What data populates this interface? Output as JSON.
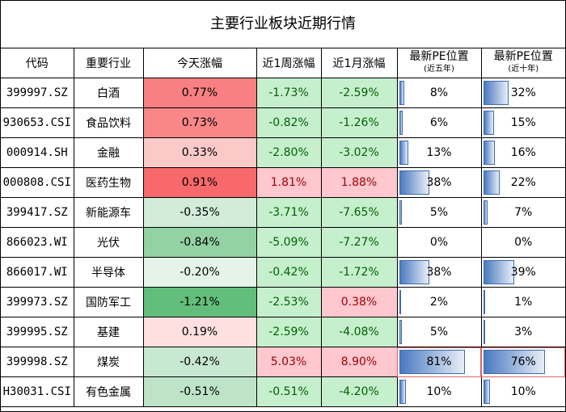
{
  "title": "主要行业板块近期行情",
  "headers": {
    "code": "代码",
    "industry": "重要行业",
    "today": "今天涨幅",
    "week": "近1周涨幅",
    "month": "近1月涨幅",
    "pe5": "最新PE位置",
    "pe5_sub": "(近五年)",
    "pe10": "最新PE位置",
    "pe10_sub": "(近十年)"
  },
  "rows": [
    {
      "code": "399997.SZ",
      "name": "白酒",
      "today": "0.77%",
      "week": "-1.73%",
      "month": "-2.59%",
      "pe5": "8%",
      "pe10": "32%",
      "today_v": 0.77,
      "week_v": -1.73,
      "month_v": -2.59,
      "pe5_v": 8,
      "pe10_v": 32
    },
    {
      "code": "930653.CSI",
      "name": "食品饮料",
      "today": "0.73%",
      "week": "-0.82%",
      "month": "-1.26%",
      "pe5": "6%",
      "pe10": "15%",
      "today_v": 0.73,
      "week_v": -0.82,
      "month_v": -1.26,
      "pe5_v": 6,
      "pe10_v": 15
    },
    {
      "code": "000914.SH",
      "name": "金融",
      "today": "0.33%",
      "week": "-2.80%",
      "month": "-3.02%",
      "pe5": "13%",
      "pe10": "16%",
      "today_v": 0.33,
      "week_v": -2.8,
      "month_v": -3.02,
      "pe5_v": 13,
      "pe10_v": 16
    },
    {
      "code": "000808.CSI",
      "name": "医药生物",
      "today": "0.91%",
      "week": "1.81%",
      "month": "1.88%",
      "pe5": "38%",
      "pe10": "22%",
      "today_v": 0.91,
      "week_v": 1.81,
      "month_v": 1.88,
      "pe5_v": 38,
      "pe10_v": 22
    },
    {
      "code": "399417.SZ",
      "name": "新能源车",
      "today": "-0.35%",
      "week": "-3.71%",
      "month": "-7.65%",
      "pe5": "5%",
      "pe10": "7%",
      "today_v": -0.35,
      "week_v": -3.71,
      "month_v": -7.65,
      "pe5_v": 5,
      "pe10_v": 7
    },
    {
      "code": "866023.WI",
      "name": "光伏",
      "today": "-0.84%",
      "week": "-5.09%",
      "month": "-7.27%",
      "pe5": "0%",
      "pe10": "0%",
      "today_v": -0.84,
      "week_v": -5.09,
      "month_v": -7.27,
      "pe5_v": 0,
      "pe10_v": 0
    },
    {
      "code": "866017.WI",
      "name": "半导体",
      "today": "-0.20%",
      "week": "-0.42%",
      "month": "-1.72%",
      "pe5": "38%",
      "pe10": "39%",
      "today_v": -0.2,
      "week_v": -0.42,
      "month_v": -1.72,
      "pe5_v": 38,
      "pe10_v": 39
    },
    {
      "code": "399973.SZ",
      "name": "国防军工",
      "today": "-1.21%",
      "week": "-2.53%",
      "month": "0.38%",
      "pe5": "2%",
      "pe10": "1%",
      "today_v": -1.21,
      "week_v": -2.53,
      "month_v": 0.38,
      "pe5_v": 2,
      "pe10_v": 1
    },
    {
      "code": "399995.SZ",
      "name": "基建",
      "today": "0.19%",
      "week": "-2.59%",
      "month": "-4.08%",
      "pe5": "5%",
      "pe10": "3%",
      "today_v": 0.19,
      "week_v": -2.59,
      "month_v": -4.08,
      "pe5_v": 5,
      "pe10_v": 3
    },
    {
      "code": "399998.SZ",
      "name": "煤炭",
      "today": "-0.42%",
      "week": "5.03%",
      "month": "8.90%",
      "pe5": "81%",
      "pe10": "76%",
      "today_v": -0.42,
      "week_v": 5.03,
      "month_v": 8.9,
      "pe5_v": 81,
      "pe10_v": 76
    },
    {
      "code": "H30031.CSI",
      "name": "有色金属",
      "today": "-0.51%",
      "week": "-0.51%",
      "month": "-4.20%",
      "pe5": "10%",
      "pe10": "10%",
      "today_v": -0.51,
      "week_v": -0.51,
      "month_v": -4.2,
      "pe5_v": 10,
      "pe10_v": 10
    }
  ],
  "colors": {
    "today_pos": "#f8696b",
    "today_neg": "#63be7b",
    "change_pos_bg": "#ffc7ce",
    "change_pos_text": "#9c0006",
    "change_neg_bg": "#c6efce",
    "change_neg_text": "#006100",
    "pe_bar": "#4a7ac0"
  }
}
